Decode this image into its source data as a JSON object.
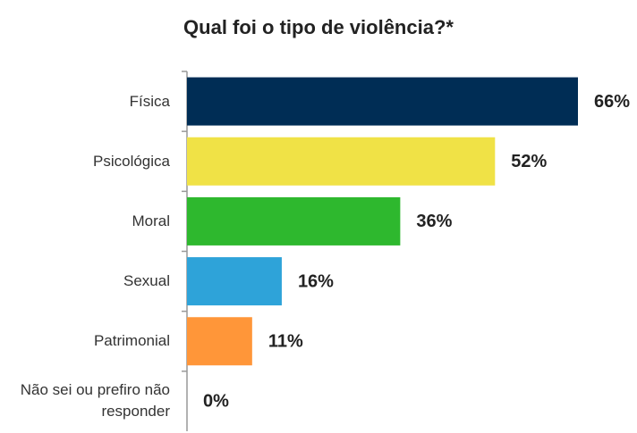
{
  "chart_data": {
    "type": "bar",
    "orientation": "horizontal",
    "title": "Qual foi o tipo de violência?*",
    "categories": [
      "Física",
      "Psicológica",
      "Moral",
      "Sexual",
      "Patrimonial",
      "Não sei ou prefiro não responder"
    ],
    "values": [
      66,
      52,
      36,
      16,
      11,
      0
    ],
    "value_labels": [
      "66%",
      "52%",
      "36%",
      "16%",
      "11%",
      "0%"
    ],
    "colors": [
      "#002d55",
      "#f0e246",
      "#2eb82e",
      "#2ea3d9",
      "#ff9639",
      "#888888"
    ]
  }
}
